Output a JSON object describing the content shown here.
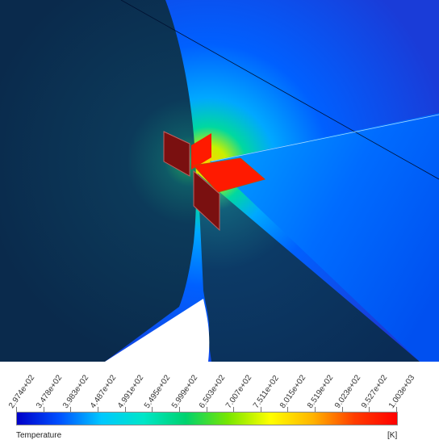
{
  "legend": {
    "title": "Temperature",
    "unit": "[K]",
    "ticks": [
      "2.974e+02",
      "3.478e+02",
      "3.983e+02",
      "4.487e+02",
      "4.991e+02",
      "5.495e+02",
      "5.999e+02",
      "6.503e+02",
      "7.007e+02",
      "7.511e+02",
      "8.015e+02",
      "8.519e+02",
      "9.023e+02",
      "9.527e+02",
      "1.003e+03"
    ],
    "range": [
      297.4,
      1003
    ],
    "colors": [
      "#0000c8",
      "#0050ff",
      "#00c8ff",
      "#00e6c8",
      "#00d26e",
      "#78e600",
      "#ffff00",
      "#ffb400",
      "#ff3c00",
      "#ff0000"
    ]
  }
}
